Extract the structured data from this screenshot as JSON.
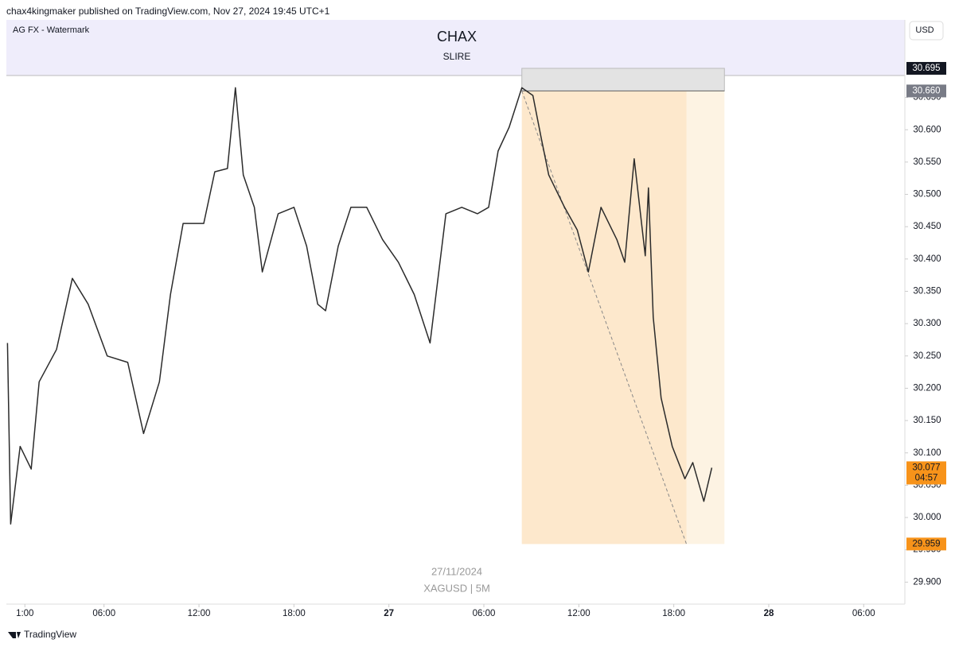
{
  "header": {
    "publisher": "chax4kingmaker published on TradingView.com, Nov 27, 2024 19:45 UTC+1"
  },
  "footer": {
    "brand": "TradingView"
  },
  "chart_data": {
    "type": "line",
    "title": "CHAX",
    "subtitle": "SLIRE",
    "watermark_label": "AG FX - Watermark",
    "currency": "USD",
    "date": "27/11/2024",
    "symbol": "XAGUSD | 5M",
    "color": "#2b2b2b",
    "x": [
      -0.1,
      0.1,
      0.7,
      1.4,
      1.9,
      3.0,
      4.0,
      5.0,
      6.2,
      7.5,
      8.5,
      9.5,
      10.2,
      11.0,
      12.3,
      13.0,
      13.8,
      14.3,
      14.8,
      15.5,
      16.0,
      17.0,
      18.0,
      18.8,
      19.5,
      20.0,
      20.8,
      21.6,
      22.6,
      23.6,
      24.6,
      25.6,
      26.6,
      27.6,
      28.6,
      29.6,
      30.3,
      30.9,
      31.6,
      32.4,
      33.1,
      33.6,
      34.1,
      35.1,
      35.9,
      36.6,
      37.4,
      38.4,
      38.9,
      39.5,
      40.2,
      40.4,
      40.7,
      41.2,
      41.9,
      42.7,
      43.2,
      43.9,
      44.4
    ],
    "values": [
      30.27,
      29.99,
      30.11,
      30.075,
      30.21,
      30.26,
      30.37,
      30.33,
      30.25,
      30.24,
      30.13,
      30.21,
      30.345,
      30.455,
      30.455,
      30.535,
      30.54,
      30.665,
      30.53,
      30.48,
      30.38,
      30.47,
      30.48,
      30.42,
      30.33,
      30.32,
      30.42,
      30.48,
      30.48,
      30.43,
      30.395,
      30.345,
      30.27,
      30.47,
      30.48,
      30.47,
      30.48,
      30.567,
      30.604,
      30.665,
      30.653,
      30.59,
      30.53,
      30.48,
      30.445,
      30.38,
      30.48,
      30.43,
      30.395,
      30.555,
      30.405,
      30.51,
      30.31,
      30.185,
      30.11,
      30.06,
      30.085,
      30.025,
      30.077
    ],
    "xlim": [
      -0.17,
      56.6
    ],
    "xticks": [
      {
        "value": 1,
        "label": "1:00"
      },
      {
        "value": 6,
        "label": "06:00"
      },
      {
        "value": 12,
        "label": "12:00"
      },
      {
        "value": 18,
        "label": "18:00"
      },
      {
        "value": 24,
        "label": "27"
      },
      {
        "value": 30,
        "label": "06:00"
      },
      {
        "value": 36,
        "label": "12:00"
      },
      {
        "value": 42,
        "label": "18:00"
      },
      {
        "value": 48,
        "label": "28"
      },
      {
        "value": 54,
        "label": "06:00"
      }
    ],
    "ylim": [
      29.866,
      30.77
    ],
    "yticks": [
      {
        "value": 29.9,
        "label": "29.900"
      },
      {
        "value": 29.95,
        "label": "29.950"
      },
      {
        "value": 30.0,
        "label": "30.000"
      },
      {
        "value": 30.05,
        "label": "30.050"
      },
      {
        "value": 30.1,
        "label": "30.100"
      },
      {
        "value": 30.15,
        "label": "30.150"
      },
      {
        "value": 30.2,
        "label": "30.200"
      },
      {
        "value": 30.25,
        "label": "30.250"
      },
      {
        "value": 30.3,
        "label": "30.300"
      },
      {
        "value": 30.35,
        "label": "30.350"
      },
      {
        "value": 30.4,
        "label": "30.400"
      },
      {
        "value": 30.45,
        "label": "30.450"
      },
      {
        "value": 30.5,
        "label": "30.500"
      },
      {
        "value": 30.55,
        "label": "30.550"
      },
      {
        "value": 30.6,
        "label": "30.600"
      },
      {
        "value": 30.65,
        "label": "30.650"
      }
    ],
    "position": {
      "start": 32.4,
      "end": 45.2,
      "target_hit": 42.8,
      "stop": {
        "value": 30.695,
        "label": "30.695"
      },
      "entry": {
        "value": 30.66,
        "label": "30.660"
      },
      "target": {
        "value": 29.959,
        "label": "29.959"
      }
    },
    "last_price": {
      "value": 30.077,
      "label": "30.077",
      "countdown": "04:57"
    }
  }
}
